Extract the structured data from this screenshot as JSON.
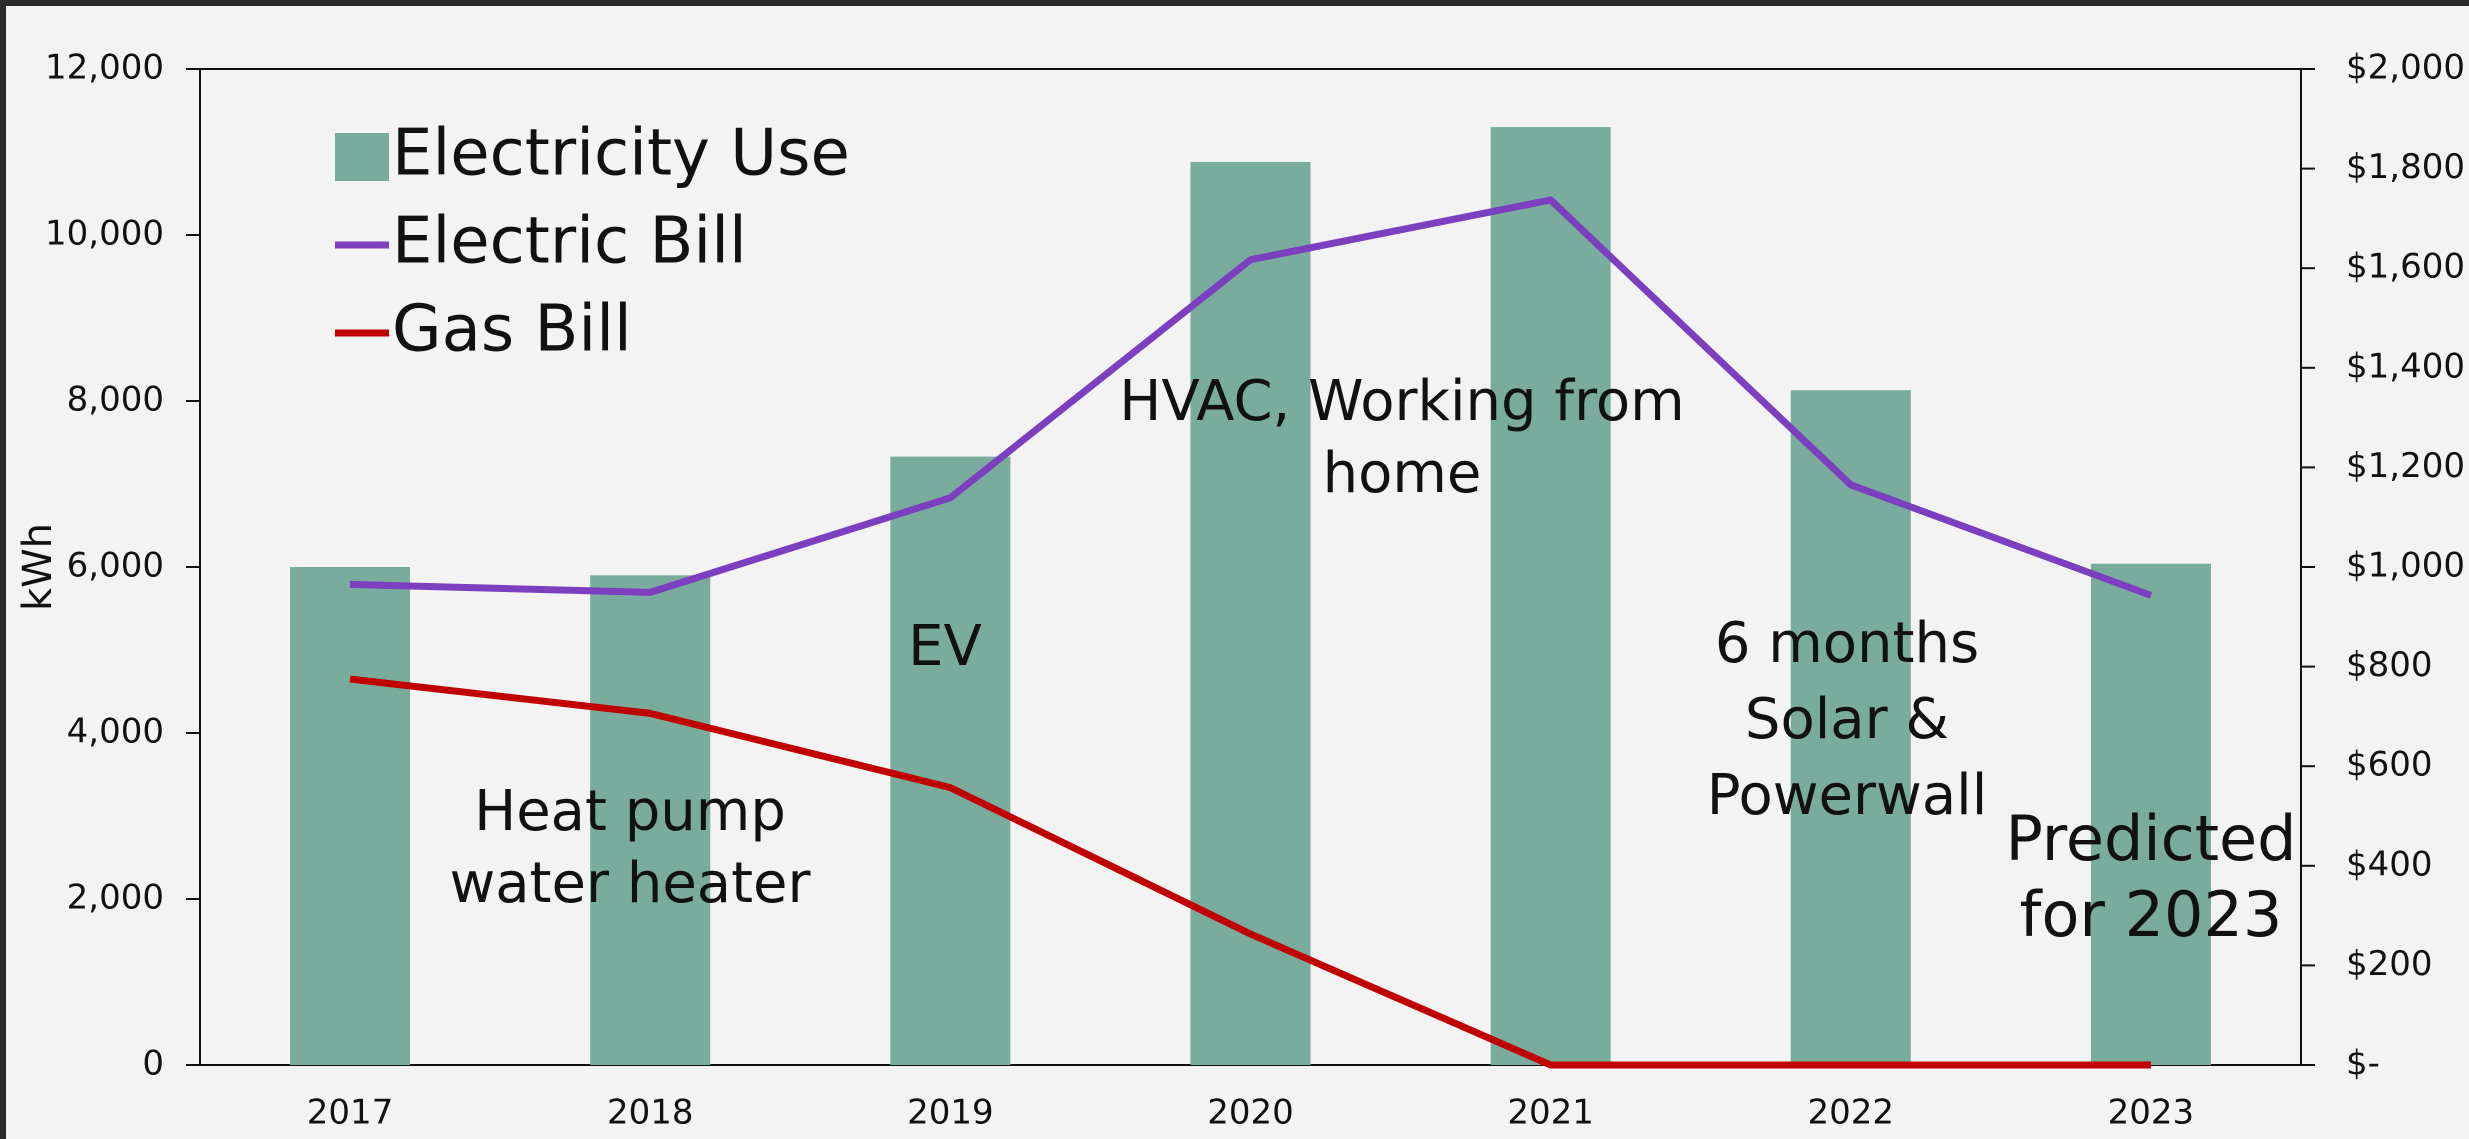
{
  "chart_data": {
    "type": "bar",
    "categories": [
      "2017",
      "2018",
      "2019",
      "2020",
      "2021",
      "2022",
      "2023"
    ],
    "series": [
      {
        "name": "Electricity Use",
        "type": "bar",
        "color": "#79ac9d",
        "values": [
          6000,
          5900,
          7330,
          10880,
          11300,
          8130,
          6040
        ]
      },
      {
        "name": "Electric Bill",
        "type": "line",
        "axis": "y2",
        "color": "#7b3fc0",
        "values": [
          965,
          949,
          1139,
          1617,
          1737,
          1165,
          943
        ]
      },
      {
        "name": "Gas Bill",
        "type": "line",
        "axis": "y2",
        "color": "#c00000",
        "values": [
          775,
          706,
          557,
          263,
          0,
          0,
          0
        ]
      }
    ],
    "y_label": "kWh",
    "ylim": [
      0,
      12000
    ],
    "yticks": [
      0,
      {
        "value": 2000,
        "label": "2,000"
      },
      {
        "value": 4000,
        "label": "4,000"
      },
      {
        "value": 6000,
        "label": "6,000"
      },
      {
        "value": 8000,
        "label": "8,000"
      },
      {
        "value": 10000,
        "label": "10,000"
      },
      {
        "value": 12000,
        "label": "12,000"
      }
    ],
    "y2lim": [
      0,
      2000
    ],
    "y2ticks": [
      {
        "value": 0,
        "label": "$-"
      },
      {
        "value": 200,
        "label": "$200"
      },
      {
        "value": 400,
        "label": "$400"
      },
      {
        "value": 600,
        "label": "$600"
      },
      {
        "value": 800,
        "label": "$800"
      },
      {
        "value": 1000,
        "label": "$1,000"
      },
      {
        "value": 1200,
        "label": "$1,200"
      },
      {
        "value": 1400,
        "label": "$1,400"
      },
      {
        "value": 1600,
        "label": "$1,600"
      },
      {
        "value": 1800,
        "label": "$1,800"
      },
      {
        "value": 2000,
        "label": "$2,000"
      }
    ],
    "legend": "upper left",
    "annotations": [
      {
        "lines": [
          "Heat pump",
          "water heater"
        ]
      },
      {
        "lines": [
          "EV"
        ]
      },
      {
        "lines": [
          "HVAC, Working from",
          "home"
        ]
      },
      {
        "lines": [
          "6 months",
          "Solar &",
          "Powerwall"
        ]
      },
      {
        "lines": [
          "Predicted",
          "for 2023"
        ]
      }
    ]
  }
}
